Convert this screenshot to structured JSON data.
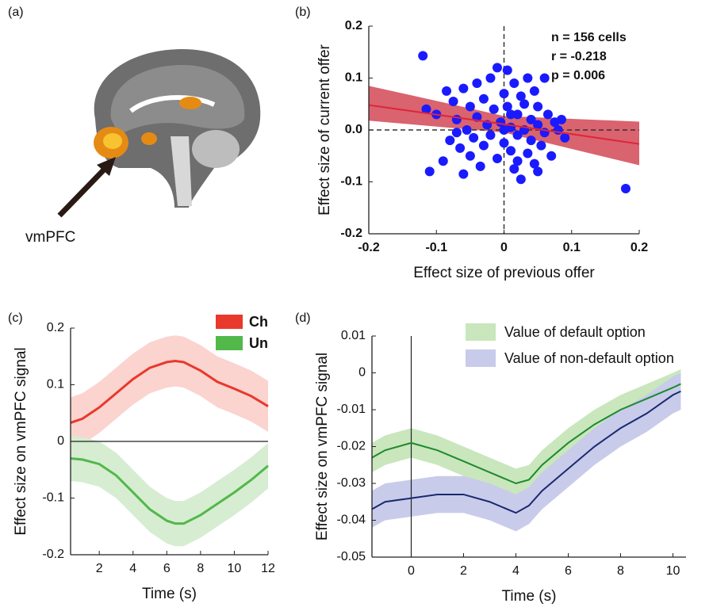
{
  "image_panel": {
    "label": "(a)",
    "annotation": "vmPFC"
  },
  "chart_data": [
    {
      "type": "scatter",
      "label": "(b)",
      "x_label": "Effect size of previous offer",
      "y_label": "Effect size of current offer",
      "xlim": [
        -0.2,
        0.2
      ],
      "xticks": [
        -0.2,
        -0.1,
        0,
        0.1,
        0.2
      ],
      "ylim": [
        -0.2,
        0.2
      ],
      "yticks": [
        -0.2,
        -0.1,
        {
          "value": 0,
          "label": "0.0"
        },
        0.1,
        0.2
      ],
      "color": "#1a1aff",
      "x": [
        -0.12,
        -0.11,
        -0.1,
        -0.09,
        -0.08,
        -0.075,
        -0.07,
        -0.065,
        -0.06,
        -0.06,
        -0.055,
        -0.05,
        -0.05,
        -0.045,
        -0.04,
        -0.04,
        -0.035,
        -0.03,
        -0.03,
        -0.025,
        -0.02,
        -0.02,
        -0.015,
        -0.01,
        -0.01,
        -0.005,
        0,
        0,
        0.005,
        0.005,
        0.01,
        0.01,
        0.015,
        0.015,
        0.02,
        0.02,
        0.025,
        0.025,
        0.03,
        0.03,
        0.035,
        0.035,
        0.04,
        0.04,
        0.045,
        0.045,
        0.05,
        0.05,
        0.055,
        0.06,
        0.06,
        0.065,
        0.07,
        0.075,
        0.08,
        0.09,
        -0.115,
        0.085,
        0.18,
        -0.085,
        0,
        0.02,
        -0.07,
        0.05,
        0.01
      ],
      "values": [
        0.143,
        -0.08,
        0.03,
        -0.06,
        -0.02,
        0.055,
        0.02,
        -0.035,
        0.08,
        -0.085,
        0,
        0.045,
        -0.05,
        -0.015,
        0.09,
        0.025,
        -0.07,
        0.06,
        -0.03,
        0.01,
        0.1,
        -0.01,
        0.04,
        0.12,
        -0.055,
        0.015,
        0.07,
        -0.025,
        0.115,
        0.045,
        -0.04,
        0.005,
        0.09,
        -0.075,
        0.03,
        -0.01,
        0.065,
        -0.095,
        0,
        0.05,
        -0.045,
        0.1,
        0.02,
        -0.02,
        0.075,
        -0.065,
        0.01,
        0.045,
        -0.03,
        0.1,
        -0.005,
        0.03,
        -0.05,
        0.015,
        0,
        -0.015,
        0.04,
        0.02,
        -0.113,
        0.075,
        0,
        -0.06,
        -0.005,
        -0.08,
        0.03
      ],
      "fit": {
        "color": "#e0233a",
        "band_color": "#d9636f",
        "x": [
          -0.2,
          0,
          0.2
        ],
        "y": [
          0.048,
          0.011,
          -0.027
        ],
        "lower": [
          0.018,
          -0.005,
          -0.068
        ],
        "upper": [
          0.085,
          0.027,
          0.016
        ]
      },
      "reference_lines": {
        "x": 0,
        "y": 0
      },
      "annotations": [
        "n = 156 cells",
        "r = -0.218",
        "p = 0.006"
      ]
    },
    {
      "type": "line",
      "label": "(c)",
      "x_label": "Time (s)",
      "y_label": "Effect size on vmPFC signal",
      "xlim": [
        0.3,
        12
      ],
      "xticks": [
        2,
        4,
        6,
        8,
        10,
        12
      ],
      "ylim": [
        -0.2,
        0.2
      ],
      "yticks": [
        -0.2,
        -0.1,
        0,
        0.1,
        0.2
      ],
      "hline": 0,
      "legend": "top-right",
      "x": [
        0.3,
        1,
        2,
        3,
        4,
        5,
        6,
        6.5,
        7,
        8,
        9,
        10,
        11,
        12
      ],
      "series": [
        {
          "name": "Ch",
          "color": "#e8392c",
          "band_color": "#fbd3cf",
          "values": [
            0.033,
            0.04,
            0.06,
            0.085,
            0.11,
            0.13,
            0.14,
            0.142,
            0.14,
            0.125,
            0.105,
            0.093,
            0.08,
            0.062
          ],
          "lower": [
            -0.012,
            -0.005,
            0.015,
            0.04,
            0.065,
            0.085,
            0.095,
            0.097,
            0.095,
            0.08,
            0.06,
            0.048,
            0.035,
            0.017
          ],
          "upper": [
            0.078,
            0.085,
            0.105,
            0.13,
            0.155,
            0.175,
            0.185,
            0.187,
            0.185,
            0.17,
            0.15,
            0.138,
            0.125,
            0.107
          ]
        },
        {
          "name": "Un",
          "color": "#52b84a",
          "band_color": "#d6edd2",
          "values": [
            -0.03,
            -0.032,
            -0.04,
            -0.06,
            -0.09,
            -0.12,
            -0.14,
            -0.145,
            -0.145,
            -0.13,
            -0.11,
            -0.09,
            -0.068,
            -0.043
          ],
          "lower": [
            -0.07,
            -0.072,
            -0.08,
            -0.1,
            -0.13,
            -0.16,
            -0.18,
            -0.185,
            -0.185,
            -0.17,
            -0.15,
            -0.13,
            -0.108,
            -0.083
          ],
          "upper": [
            0.01,
            0.008,
            0,
            -0.02,
            -0.05,
            -0.08,
            -0.1,
            -0.105,
            -0.105,
            -0.09,
            -0.07,
            -0.05,
            -0.028,
            -0.003
          ]
        }
      ]
    },
    {
      "type": "line",
      "label": "(d)",
      "x_label": "Time (s)",
      "y_label": "Effect size on vmPFC signal",
      "xlim": [
        -1.5,
        10.5
      ],
      "xticks": [
        0,
        2,
        4,
        6,
        8,
        10
      ],
      "ylim": [
        -0.05,
        0.01
      ],
      "yticks": [
        -0.05,
        -0.04,
        -0.03,
        -0.02,
        -0.01,
        0,
        0.01
      ],
      "vline": 0,
      "legend": "top-right",
      "x": [
        -1.5,
        -1,
        0,
        1,
        2,
        3,
        4,
        4.5,
        5,
        6,
        7,
        8,
        9,
        10,
        10.3
      ],
      "series": [
        {
          "name": "Value of default option",
          "color": "#1e8a2e",
          "band_color": "#c9e6bd",
          "values": [
            -0.023,
            -0.021,
            -0.019,
            -0.021,
            -0.024,
            -0.027,
            -0.03,
            -0.029,
            -0.025,
            -0.019,
            -0.014,
            -0.01,
            -0.007,
            -0.004,
            -0.003
          ],
          "lower": [
            -0.027,
            -0.025,
            -0.023,
            -0.025,
            -0.028,
            -0.031,
            -0.034,
            -0.033,
            -0.029,
            -0.023,
            -0.018,
            -0.014,
            -0.011,
            -0.008,
            -0.007
          ],
          "upper": [
            -0.019,
            -0.017,
            -0.015,
            -0.017,
            -0.02,
            -0.023,
            -0.026,
            -0.025,
            -0.021,
            -0.015,
            -0.01,
            -0.006,
            -0.003,
            0,
            0.001
          ]
        },
        {
          "name": "Value of non-default option",
          "color": "#1b2a6e",
          "band_color": "#c8cbea",
          "values": [
            -0.037,
            -0.035,
            -0.034,
            -0.033,
            -0.033,
            -0.035,
            -0.038,
            -0.036,
            -0.032,
            -0.026,
            -0.02,
            -0.015,
            -0.011,
            -0.006,
            -0.005
          ],
          "lower": [
            -0.042,
            -0.04,
            -0.039,
            -0.038,
            -0.038,
            -0.04,
            -0.043,
            -0.041,
            -0.037,
            -0.031,
            -0.025,
            -0.02,
            -0.016,
            -0.011,
            -0.01
          ],
          "upper": [
            -0.032,
            -0.03,
            -0.029,
            -0.028,
            -0.028,
            -0.03,
            -0.033,
            -0.031,
            -0.027,
            -0.021,
            -0.015,
            -0.01,
            -0.006,
            -0.001,
            0
          ]
        }
      ]
    }
  ]
}
